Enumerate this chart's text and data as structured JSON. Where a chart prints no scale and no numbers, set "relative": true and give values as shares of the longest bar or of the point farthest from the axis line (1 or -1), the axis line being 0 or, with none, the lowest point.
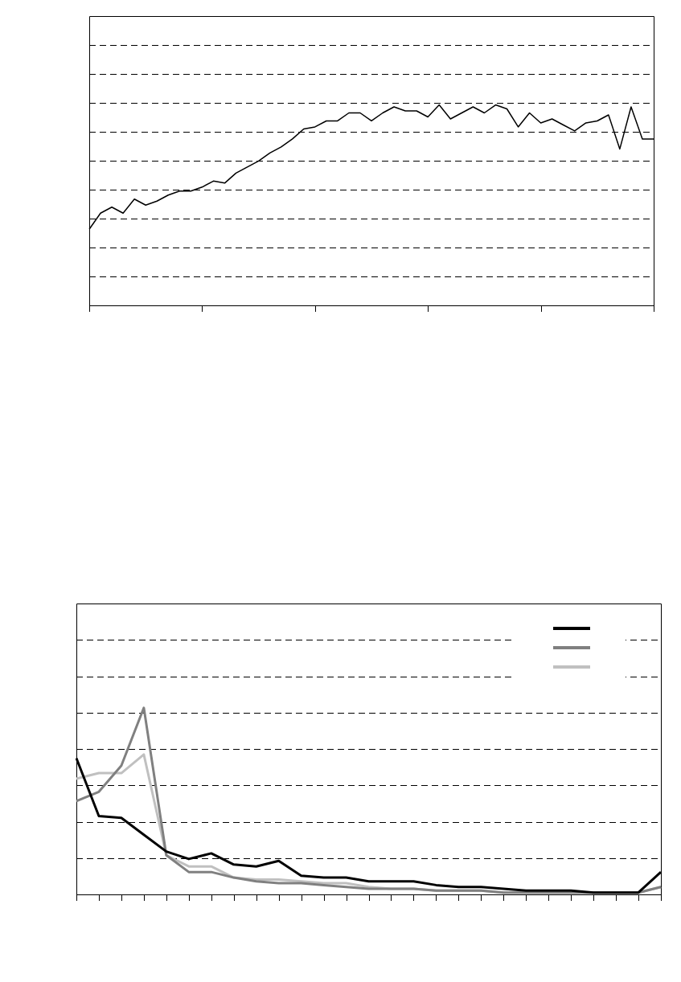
{
  "chart_data": [
    {
      "type": "line",
      "relative": true,
      "grid": "y",
      "marker": "none",
      "line_style": "solid",
      "categories": [
        null,
        null,
        null,
        null,
        null,
        null,
        null,
        null,
        null,
        null,
        null,
        null,
        null,
        null,
        null,
        null,
        null,
        null,
        null,
        null,
        null,
        null,
        null,
        null,
        null,
        null,
        null,
        null,
        null,
        null,
        null,
        null,
        null,
        null,
        null,
        null,
        null,
        null,
        null,
        null,
        null,
        null,
        null,
        null,
        null,
        null,
        null,
        null,
        null,
        null,
        null
      ],
      "series": [
        {
          "color": "#000000",
          "values": [
            0.38,
            0.46,
            0.49,
            0.46,
            0.53,
            0.5,
            0.52,
            0.55,
            0.57,
            0.57,
            0.59,
            0.62,
            0.61,
            0.66,
            0.69,
            0.72,
            0.76,
            0.79,
            0.83,
            0.88,
            0.89,
            0.92,
            0.92,
            0.96,
            0.96,
            0.92,
            0.96,
            0.99,
            0.97,
            0.97,
            0.94,
            1,
            0.93,
            0.96,
            0.99,
            0.96,
            1,
            0.98,
            0.89,
            0.96,
            0.91,
            0.93,
            0.9,
            0.87,
            0.91,
            0.92,
            0.95,
            0.78,
            0.99,
            0.83,
            0.83
          ]
        }
      ]
    },
    {
      "type": "line",
      "relative": true,
      "grid": "y",
      "marker": "none",
      "line_style": "solid",
      "categories": [
        null,
        null,
        null,
        null,
        null,
        null,
        null,
        null,
        null,
        null,
        null,
        null,
        null,
        null,
        null,
        null,
        null,
        null,
        null,
        null,
        null,
        null,
        null,
        null,
        null,
        null,
        null
      ],
      "series": [
        {
          "color": "#000000",
          "values": [
            0.73,
            0.42,
            0.41,
            0.32,
            0.23,
            0.19,
            0.22,
            0.16,
            0.15,
            0.18,
            0.1,
            0.09,
            0.09,
            0.07,
            0.07,
            0.07,
            0.05,
            0.04,
            0.04,
            0.03,
            0.02,
            0.02,
            0.02,
            0.01,
            0.01,
            0.01,
            0.12
          ]
        },
        {
          "color": "#808080",
          "values": [
            0.5,
            0.55,
            0.69,
            1,
            0.21,
            0.12,
            0.12,
            0.09,
            0.07,
            0.06,
            0.06,
            0.05,
            0.04,
            0.03,
            0.03,
            0.03,
            0.02,
            0.02,
            0.02,
            0.01,
            0.01,
            0.01,
            0.01,
            0.01,
            0.01,
            0.01,
            0.04
          ]
        },
        {
          "color": "#c0c0c0",
          "values": [
            0.62,
            0.65,
            0.65,
            0.75,
            0.21,
            0.15,
            0.15,
            0.09,
            0.08,
            0.08,
            0.07,
            0.06,
            0.06,
            0.04,
            0.03,
            0.03,
            0.02,
            0.02,
            0.02,
            0.01,
            0.01,
            0.01,
            0.01,
            0.01,
            0.01,
            0.01,
            0.04
          ]
        }
      ]
    }
  ]
}
